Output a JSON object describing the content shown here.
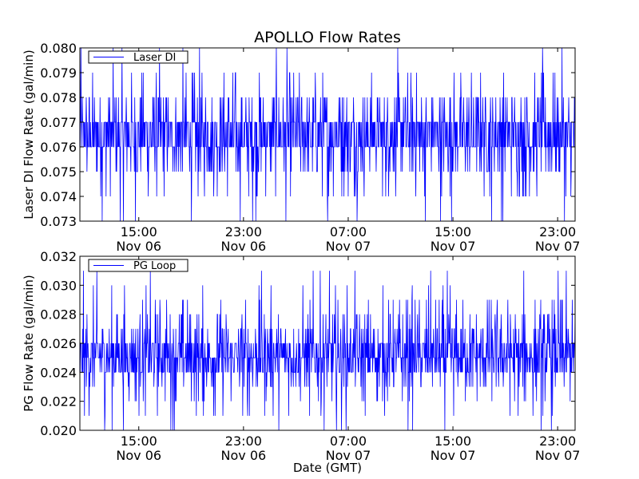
{
  "figure": {
    "title": "APOLLO Flow Rates",
    "xlabel": "Date (GMT)",
    "colors": {
      "series": "#0000ff",
      "axes": "#000000",
      "background": "#ffffff"
    }
  },
  "chart_data": [
    {
      "type": "line",
      "title": "APOLLO Flow Rates",
      "ylabel": "Laser DI Flow Rate (gal/min)",
      "xlabel": "",
      "series": [
        {
          "name": "Laser DI",
          "color": "#0000ff"
        }
      ],
      "legend": "top-left",
      "grid": false,
      "xlim": [
        "Nov 06 10:30",
        "Nov 08 00:20"
      ],
      "ylim": [
        0.073,
        0.08
      ],
      "yticks": [
        "0.073",
        "0.074",
        "0.075",
        "0.076",
        "0.077",
        "0.078",
        "0.079",
        "0.080"
      ],
      "xticks": [
        {
          "time": "15:00",
          "date": "Nov 06"
        },
        {
          "time": "23:00",
          "date": "Nov 06"
        },
        {
          "time": "07:00",
          "date": "Nov 07"
        },
        {
          "time": "15:00",
          "date": "Nov 07"
        },
        {
          "time": "23:00",
          "date": "Nov 07"
        }
      ],
      "signal": {
        "levels": [
          0.073,
          0.074,
          0.075,
          0.076,
          0.077,
          0.078,
          0.079,
          0.08
        ],
        "weights": [
          1,
          3,
          10,
          36,
          36,
          10,
          3,
          1
        ],
        "typical_range": [
          0.076,
          0.077
        ]
      }
    },
    {
      "type": "line",
      "title": "",
      "ylabel": "PG Flow Rate (gal/min)",
      "xlabel": "Date (GMT)",
      "series": [
        {
          "name": "PG Loop",
          "color": "#0000ff"
        }
      ],
      "legend": "top-left",
      "grid": false,
      "xlim": [
        "Nov 06 10:30",
        "Nov 08 00:20"
      ],
      "ylim": [
        0.02,
        0.032
      ],
      "yticks": [
        "0.020",
        "0.022",
        "0.024",
        "0.026",
        "0.028",
        "0.030",
        "0.032"
      ],
      "xticks": [
        {
          "time": "15:00",
          "date": "Nov 06"
        },
        {
          "time": "23:00",
          "date": "Nov 06"
        },
        {
          "time": "07:00",
          "date": "Nov 07"
        },
        {
          "time": "15:00",
          "date": "Nov 07"
        },
        {
          "time": "23:00",
          "date": "Nov 07"
        }
      ],
      "signal": {
        "levels": [
          0.02,
          0.021,
          0.022,
          0.023,
          0.024,
          0.025,
          0.026,
          0.027,
          0.028,
          0.029,
          0.03,
          0.031
        ],
        "weights": [
          1,
          2,
          3,
          5,
          22,
          30,
          22,
          8,
          4,
          2,
          1,
          1
        ],
        "typical_range": [
          0.024,
          0.026
        ]
      }
    }
  ]
}
